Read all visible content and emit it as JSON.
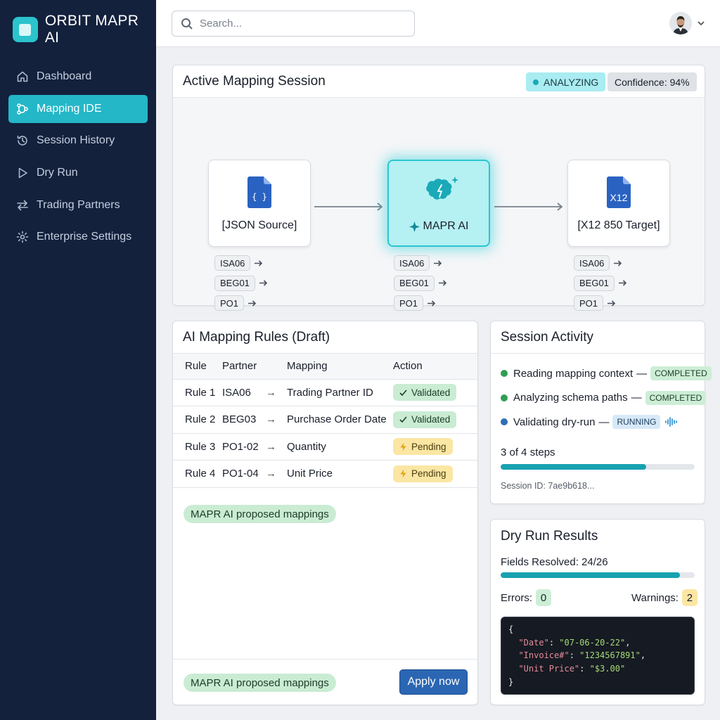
{
  "brand": {
    "name": "ORBIT MAPR AI"
  },
  "nav": [
    {
      "label": "Dashboard",
      "icon": "home-icon",
      "active": false
    },
    {
      "label": "Mapping IDE",
      "icon": "mapping-icon",
      "active": true
    },
    {
      "label": "Session History",
      "icon": "history-icon",
      "active": false
    },
    {
      "label": "Dry Run",
      "icon": "play-icon",
      "active": false
    },
    {
      "label": "Trading Partners",
      "icon": "swap-icon",
      "active": false
    },
    {
      "label": "Enterprise Settings",
      "icon": "gear-icon",
      "active": false
    }
  ],
  "search": {
    "placeholder": "Search...",
    "value": ""
  },
  "session": {
    "title": "Active Mapping Session",
    "status": "ANALYZING",
    "confidence": "Confidence: 94%",
    "nodes": [
      {
        "label": "[JSON Source]",
        "icon": "json-file-icon",
        "glyph": "{ }"
      },
      {
        "label": "MAPR AI",
        "icon": "ai-brain-icon"
      },
      {
        "label": "[X12 850 Target]",
        "icon": "x12-file-icon",
        "glyph": "X12"
      }
    ],
    "fields": [
      "ISA06",
      "BEG01",
      "PO1"
    ]
  },
  "rules": {
    "title": "AI Mapping Rules (Draft)",
    "columns": [
      "Rule",
      "Partner",
      "Mapping",
      "Action"
    ],
    "rows": [
      {
        "rule": "Rule 1",
        "partner": "ISA06",
        "arrow": "→",
        "mapping": "Trading Partner ID",
        "action": "Validated",
        "state": "ok"
      },
      {
        "rule": "Rule 2",
        "partner": "BEG03",
        "arrow": "→",
        "mapping": "Purchase Order Date",
        "action": "Validated",
        "state": "ok"
      },
      {
        "rule": "Rule 3",
        "partner": "PO1-02",
        "arrow": "→",
        "mapping": "Quantity",
        "action": "Pending",
        "state": "pend"
      },
      {
        "rule": "Rule 4",
        "partner": "PO1-04",
        "arrow": "→",
        "mapping": "Unit Price",
        "action": "Pending",
        "state": "pend"
      }
    ],
    "proposed_label": "MAPR AI proposed mappings",
    "footer_label": "MAPR AI proposed mappings",
    "apply_label": "Apply now"
  },
  "activity": {
    "title": "Session Activity",
    "items": [
      {
        "text": "Reading mapping context",
        "sep": "—",
        "tag": "COMPLETED",
        "state": "done",
        "dot": "#2f9e53"
      },
      {
        "text": "Analyzing schema paths",
        "sep": "—",
        "tag": "COMPLETED",
        "state": "done",
        "dot": "#2f9e53"
      },
      {
        "text": "Validating dry-run",
        "sep": "—",
        "tag": "RUNNING",
        "state": "run",
        "dot": "#2e6fb8"
      }
    ],
    "steps": "3 of 4 steps",
    "progress": 0.75,
    "session_id": "Session ID: 7ae9b618..."
  },
  "dryrun": {
    "title": "Dry Run Results",
    "fields_resolved": "Fields Resolved: 24/26",
    "resolved_fraction": 0.923,
    "errors_label": "Errors:",
    "errors": "0",
    "warnings_label": "Warnings:",
    "warnings": "2",
    "code": {
      "open": "{",
      "lines": [
        {
          "key": "\"Date\"",
          "value": "\"07-06-20-22\"",
          "trail": ","
        },
        {
          "key": "\"Invoice#\"",
          "value": "\"1234567891\"",
          "trail": ","
        },
        {
          "key": "\"Unit Price\"",
          "value": "\"$3.00\"",
          "trail": ""
        }
      ],
      "close": "}"
    }
  },
  "colors": {
    "sidebar": "#13213d",
    "accent": "#23b7c8",
    "primary_button": "#2b66b3"
  }
}
